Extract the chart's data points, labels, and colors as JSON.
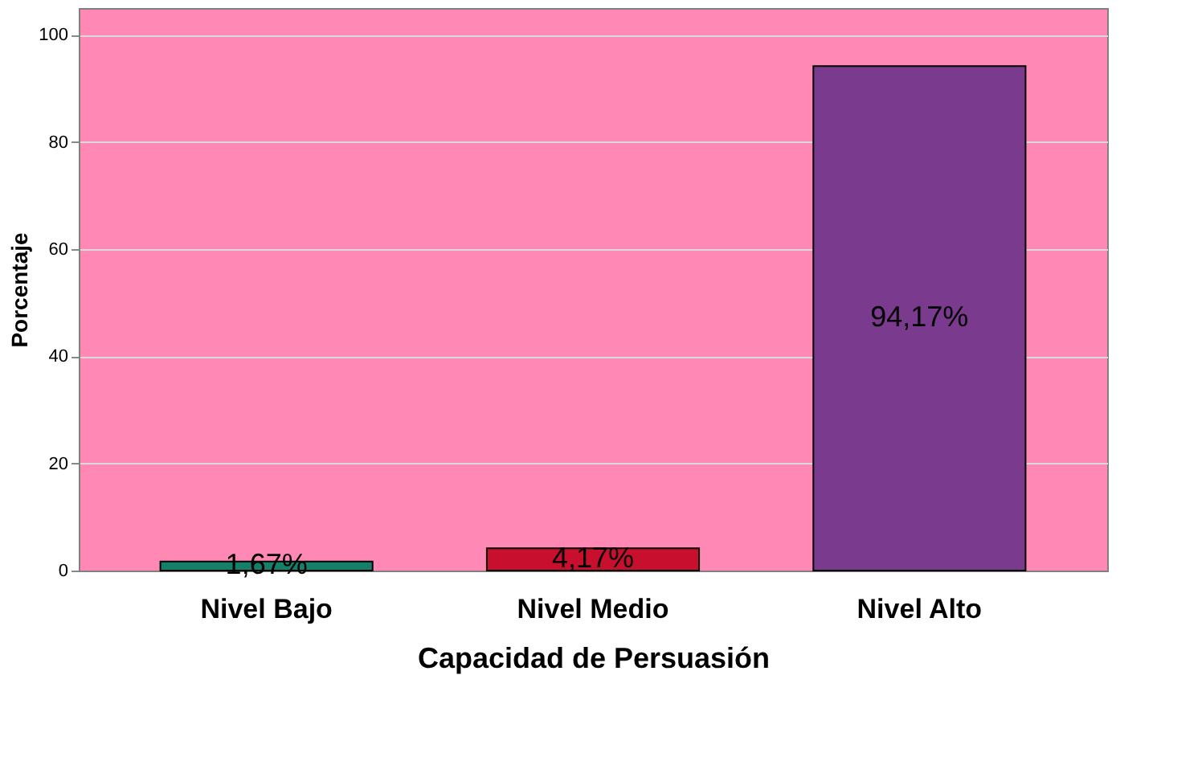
{
  "chart_data": {
    "type": "bar",
    "xlabel": "Capacidad de Persuasión",
    "ylabel": "Porcentaje",
    "categories": [
      "Nivel Bajo",
      "Nivel Medio",
      "Nivel Alto"
    ],
    "values": [
      1.67,
      4.17,
      94.17
    ],
    "colors": [
      "#14806a",
      "#c8102e",
      "#7a3a8e"
    ],
    "value_labels": [
      "1,67%",
      "4,17%",
      "94,17%"
    ],
    "ylim": [
      0,
      105
    ],
    "yticks": [
      0,
      20,
      40,
      60,
      80,
      100
    ],
    "grid": "y"
  }
}
